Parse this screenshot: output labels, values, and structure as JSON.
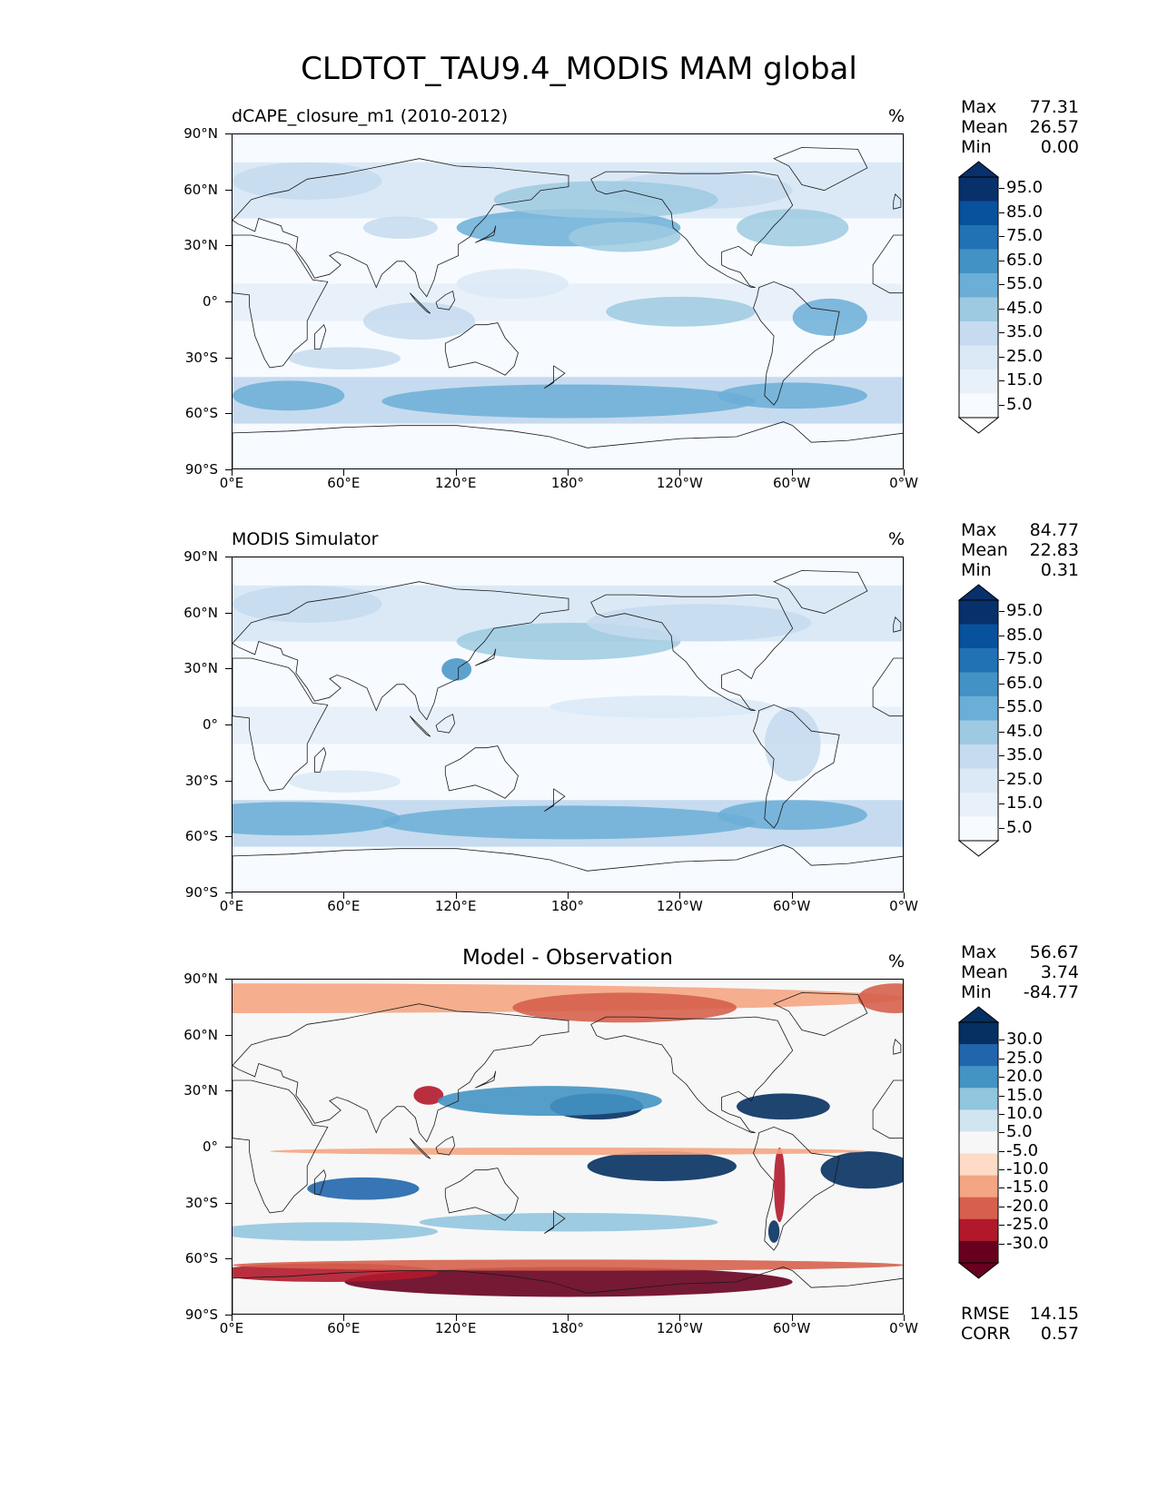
{
  "figure": {
    "title": "CLDTOT_TAU9.4_MODIS MAM global"
  },
  "axes": {
    "lat_labels": [
      "90°N",
      "60°N",
      "30°N",
      "0°",
      "30°S",
      "60°S",
      "90°S"
    ],
    "lat_values": [
      90,
      60,
      30,
      0,
      -30,
      -60,
      -90
    ],
    "lon_labels": [
      "0°E",
      "60°E",
      "120°E",
      "180°",
      "120°W",
      "60°W",
      "0°W"
    ],
    "lon_values": [
      0,
      60,
      120,
      180,
      240,
      300,
      360
    ]
  },
  "panels": [
    {
      "title": "dCAPE_closure_m1 (2010-2012)",
      "title_position": "left",
      "units": "%",
      "stats": {
        "max_label": "Max",
        "max": "77.31",
        "mean_label": "Mean",
        "mean": "26.57",
        "min_label": "Min",
        "min": "0.00"
      },
      "colorbar": {
        "labels": [
          "95.0",
          "85.0",
          "75.0",
          "65.0",
          "55.0",
          "45.0",
          "35.0",
          "25.0",
          "15.0",
          "5.0"
        ],
        "colors": [
          "#08306b",
          "#08519c",
          "#2171b5",
          "#4292c6",
          "#6baed6",
          "#9ecae1",
          "#c6dbef",
          "#dbe9f6",
          "#e8f1fa",
          "#f7fbff"
        ],
        "over_color": "#08306b",
        "under_color": "#ffffff"
      }
    },
    {
      "title": "MODIS Simulator",
      "title_position": "left",
      "units": "%",
      "stats": {
        "max_label": "Max",
        "max": "84.77",
        "mean_label": "Mean",
        "mean": "22.83",
        "min_label": "Min",
        "min": "0.31"
      },
      "colorbar": {
        "labels": [
          "95.0",
          "85.0",
          "75.0",
          "65.0",
          "55.0",
          "45.0",
          "35.0",
          "25.0",
          "15.0",
          "5.0"
        ],
        "colors": [
          "#08306b",
          "#08519c",
          "#2171b5",
          "#4292c6",
          "#6baed6",
          "#9ecae1",
          "#c6dbef",
          "#dbe9f6",
          "#e8f1fa",
          "#f7fbff"
        ],
        "over_color": "#08306b",
        "under_color": "#ffffff"
      }
    },
    {
      "title": "Model - Observation",
      "title_position": "center",
      "units": "%",
      "stats": {
        "max_label": "Max",
        "max": "56.67",
        "mean_label": "Mean",
        "mean": "3.74",
        "min_label": "Min",
        "min": "-84.77"
      },
      "colorbar": {
        "labels": [
          "30.0",
          "25.0",
          "20.0",
          "15.0",
          "10.0",
          "5.0",
          "-5.0",
          "-10.0",
          "-15.0",
          "-20.0",
          "-25.0",
          "-30.0"
        ],
        "colors": [
          "#053061",
          "#2166ac",
          "#4393c3",
          "#92c5de",
          "#d1e5f0",
          "#f7f7f7",
          "#fddbc7",
          "#f4a582",
          "#d6604d",
          "#b2182b",
          "#67001f"
        ],
        "over_color": "#053061",
        "under_color": "#67001f"
      },
      "metrics": {
        "rmse_label": "RMSE",
        "rmse": "14.15",
        "corr_label": "CORR",
        "corr": "0.57"
      }
    }
  ]
}
